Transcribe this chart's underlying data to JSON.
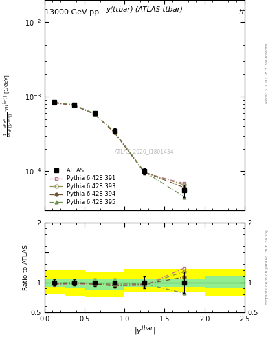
{
  "title_top": "13000 GeV pp",
  "title_right": "tt",
  "plot_title": "y(ttbar) (ATLAS ttbar)",
  "watermark": "ATLAS_2020_I1801434",
  "rivet_label": "Rivet 3.1.10, ≥ 3.3M events",
  "mcplots_label": "mcplots.cern.ch [arXiv:1306.3436]",
  "atlas_x": [
    0.125,
    0.375,
    0.625,
    0.875,
    1.25,
    1.75
  ],
  "atlas_y": [
    0.00085,
    0.00078,
    0.0006,
    0.00035,
    0.0001,
    5.5e-05
  ],
  "atlas_yerr": [
    4e-05,
    4e-05,
    3.5e-05,
    2.5e-05,
    1e-05,
    1e-05
  ],
  "py391_x": [
    0.125,
    0.375,
    0.625,
    0.875,
    1.25,
    1.75
  ],
  "py391_y": [
    0.00082,
    0.00076,
    0.00058,
    0.00033,
    9.5e-05,
    6.8e-05
  ],
  "py393_x": [
    0.125,
    0.375,
    0.625,
    0.875,
    1.25,
    1.75
  ],
  "py393_y": [
    0.00084,
    0.00077,
    0.00059,
    0.000335,
    9.6e-05,
    6.5e-05
  ],
  "py394_x": [
    0.125,
    0.375,
    0.625,
    0.875,
    1.25,
    1.75
  ],
  "py394_y": [
    0.00083,
    0.00077,
    0.000585,
    0.00033,
    9.7e-05,
    6e-05
  ],
  "py395_x": [
    0.125,
    0.375,
    0.625,
    0.875,
    1.25,
    1.75
  ],
  "py395_y": [
    0.00084,
    0.00078,
    0.00059,
    0.00034,
    9.8e-05,
    4.5e-05
  ],
  "ratio_atlas_x": [
    0.125,
    0.375,
    0.625,
    0.875,
    1.25,
    1.75
  ],
  "ratio_atlas_y": [
    1.0,
    1.0,
    1.0,
    1.0,
    1.0,
    1.0
  ],
  "ratio_atlas_yerr": [
    0.05,
    0.055,
    0.06,
    0.07,
    0.1,
    0.18
  ],
  "ratio_py391_x": [
    0.125,
    0.375,
    0.625,
    0.875,
    1.25,
    1.75
  ],
  "ratio_py391_y": [
    0.965,
    0.975,
    0.967,
    0.943,
    0.95,
    1.24
  ],
  "ratio_py393_x": [
    0.125,
    0.375,
    0.625,
    0.875,
    1.25,
    1.75
  ],
  "ratio_py393_y": [
    0.988,
    0.987,
    0.983,
    0.957,
    0.96,
    1.18
  ],
  "ratio_py394_x": [
    0.125,
    0.375,
    0.625,
    0.875,
    1.25,
    1.75
  ],
  "ratio_py394_y": [
    0.976,
    0.987,
    0.975,
    0.943,
    0.97,
    1.09
  ],
  "ratio_py395_x": [
    0.125,
    0.375,
    0.625,
    0.875,
    1.25,
    1.75
  ],
  "ratio_py395_y": [
    0.988,
    1.0,
    0.983,
    0.971,
    0.98,
    0.818
  ],
  "band_x_edges": [
    0.0,
    0.25,
    0.5,
    0.75,
    1.0,
    1.5,
    2.0,
    2.5
  ],
  "green_band_lo": [
    0.93,
    0.91,
    0.88,
    0.88,
    0.93,
    0.93,
    0.9,
    0.9
  ],
  "green_band_hi": [
    1.07,
    1.07,
    1.06,
    1.06,
    1.07,
    1.07,
    1.1,
    1.1
  ],
  "yellow_band_lo": [
    0.8,
    0.78,
    0.75,
    0.75,
    0.83,
    0.83,
    0.78,
    0.78
  ],
  "yellow_band_hi": [
    1.2,
    1.2,
    1.18,
    1.18,
    1.22,
    1.22,
    1.22,
    1.22
  ],
  "color_py391": "#c07090",
  "color_py393": "#909050",
  "color_py394": "#705030",
  "color_py395": "#709050",
  "ylim_main": [
    3e-05,
    0.02
  ],
  "ylim_ratio": [
    0.5,
    2.0
  ],
  "xlim": [
    0.0,
    2.5
  ]
}
